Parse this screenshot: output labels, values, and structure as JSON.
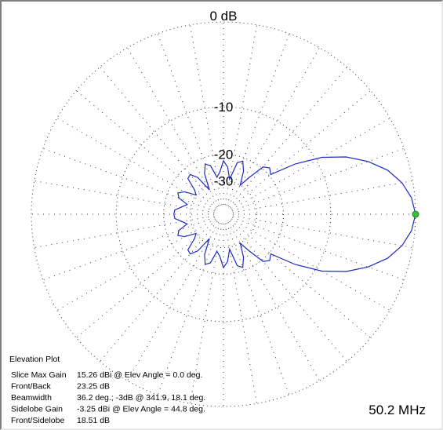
{
  "chart_data": {
    "type": "polar",
    "radial_scale": "arrl-log",
    "rmax": 0,
    "rticks": [
      {
        "value": 0,
        "label": "0 dB"
      },
      -10,
      -20,
      -30
    ],
    "x": [
      0,
      5,
      10,
      15,
      20,
      25,
      30,
      35,
      40,
      45,
      50,
      55,
      60,
      65,
      70,
      75,
      80,
      85,
      90,
      95,
      100,
      105,
      110,
      115,
      120,
      125,
      130,
      135,
      140,
      145,
      150,
      155,
      160,
      165,
      170,
      175,
      180,
      185,
      190,
      195,
      200,
      205,
      210,
      215,
      220,
      225,
      230,
      235,
      240,
      245,
      250,
      255,
      260,
      265,
      270,
      275,
      280,
      285,
      290,
      295,
      300,
      305,
      310,
      315,
      320,
      325,
      330,
      335,
      340,
      345,
      350,
      355
    ],
    "series": [
      {
        "color": "#1c2bbd",
        "marker_color": "#33c633",
        "values": [
          0,
          -0.3,
          -1,
          -2.1,
          -3.8,
          -6,
          -9,
          -13.5,
          -19.5,
          -18.5,
          -19.5,
          -25,
          -30,
          -24,
          -21,
          -22,
          -29,
          -24,
          -22,
          -26,
          -28,
          -23,
          -22,
          -25,
          -33,
          -25,
          -22.5,
          -23,
          -28,
          -30,
          -25,
          -23,
          -24,
          -28,
          -26,
          -23.5,
          -23.25,
          -23.5,
          -26,
          -28,
          -24,
          -23,
          -25,
          -30,
          -28,
          -23,
          -22.5,
          -25,
          -33,
          -25,
          -22,
          -23,
          -28,
          -26,
          -22,
          -24,
          -29,
          -22,
          -21,
          -24,
          -30,
          -25,
          -19.5,
          -18.5,
          -19.5,
          -13.5,
          -9,
          -6,
          -3.8,
          -2.1,
          -1,
          -0.3
        ]
      }
    ],
    "info": {
      "title": "Elevation Plot",
      "rows": [
        [
          "Slice Max Gain",
          "15.26 dBi @ Elev Angle = 0.0 deg."
        ],
        [
          "Front/Back",
          "23.25 dB"
        ],
        [
          "Beamwidth",
          "36.2 deg.; -3dB @ 341.9, 18.1 deg."
        ],
        [
          "Sidelobe Gain",
          "-3.25 dBi @ Elev Angle = 44.8 deg."
        ],
        [
          "Front/Sidelobe",
          "18.51 dB"
        ]
      ]
    },
    "frequency": "50.2 MHz"
  }
}
